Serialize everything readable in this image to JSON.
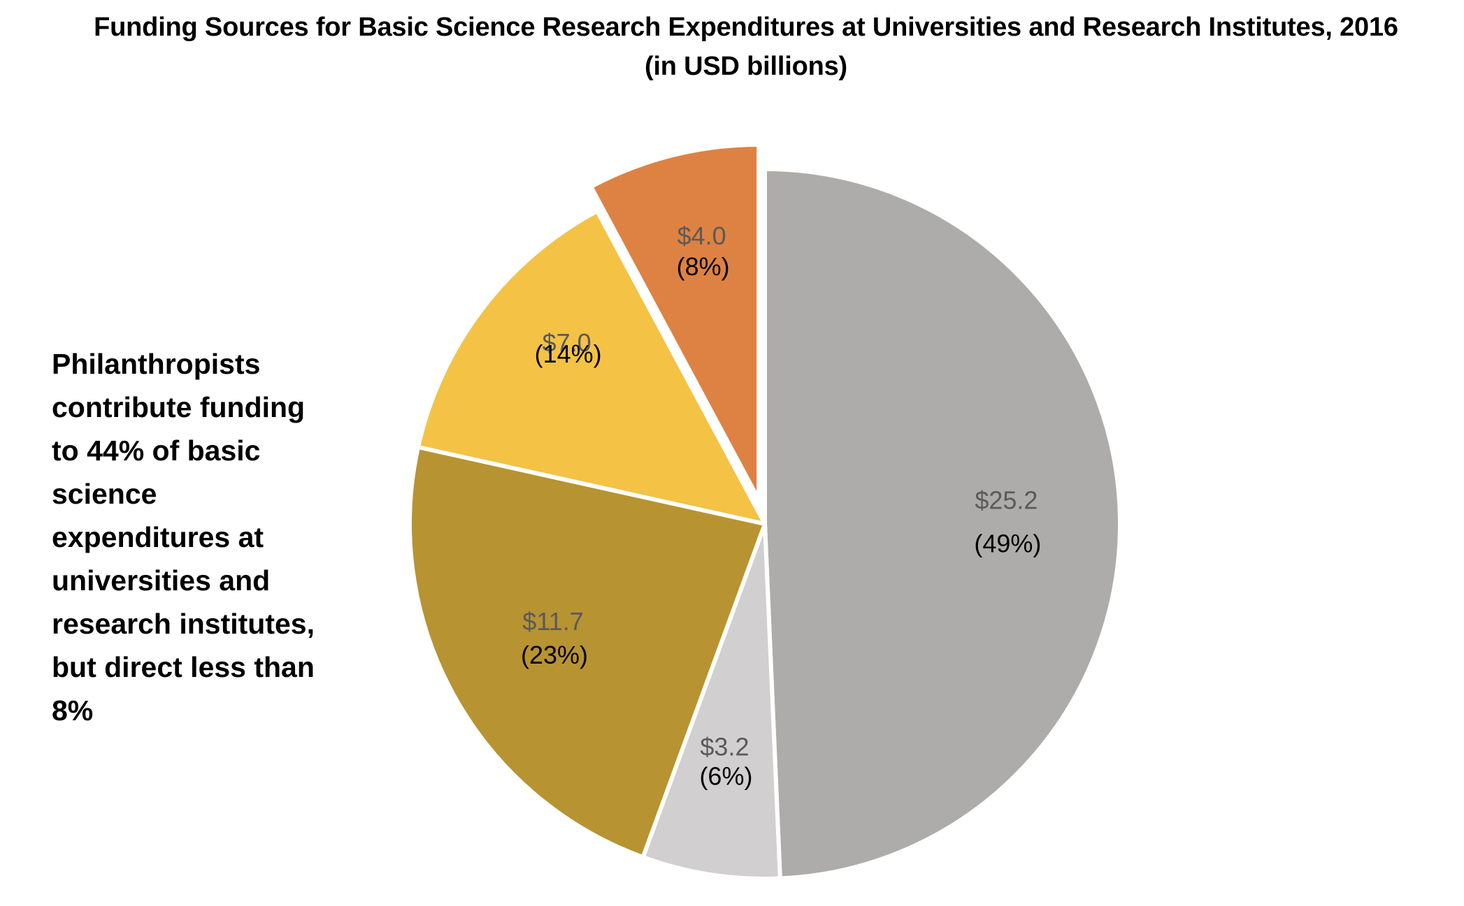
{
  "chart_data": {
    "type": "pie",
    "title": "Funding Sources for Basic Science Research Expenditures at Universities and Research Institutes, 2016",
    "subtitle": "(in USD billions)",
    "slices": [
      {
        "value": 25.2,
        "value_label": "$25.2",
        "percent_label": "(49%)",
        "color": "#adacaa",
        "label_color": "#5a5a5a",
        "exploded": false
      },
      {
        "value": 3.2,
        "value_label": "$3.2",
        "percent_label": "(6%)",
        "color": "#d1cfd0",
        "label_color": "#5a5a5a",
        "exploded": false
      },
      {
        "value": 11.7,
        "value_label": "$11.7",
        "percent_label": "(23%)",
        "color": "#b89331",
        "label_color": "#5a5a5a",
        "exploded": false
      },
      {
        "value": 7.0,
        "value_label": "$7.0",
        "percent_label": "(14%)",
        "color": "#f4c244",
        "label_color": "#5a5a5a",
        "exploded": false
      },
      {
        "value": 4.0,
        "value_label": "$4.0",
        "percent_label": "(8%)",
        "color": "#de8243",
        "label_color": "#5a5a5a",
        "exploded": true
      }
    ],
    "start_angle": "12 o'clock",
    "direction": "clockwise",
    "legend": "none"
  },
  "annotation": {
    "lines": [
      "Philanthropists",
      "contribute funding",
      "to 44% of basic",
      "science",
      "expenditures at",
      "universities and",
      "research institutes,",
      "but direct less than",
      "8%"
    ]
  }
}
